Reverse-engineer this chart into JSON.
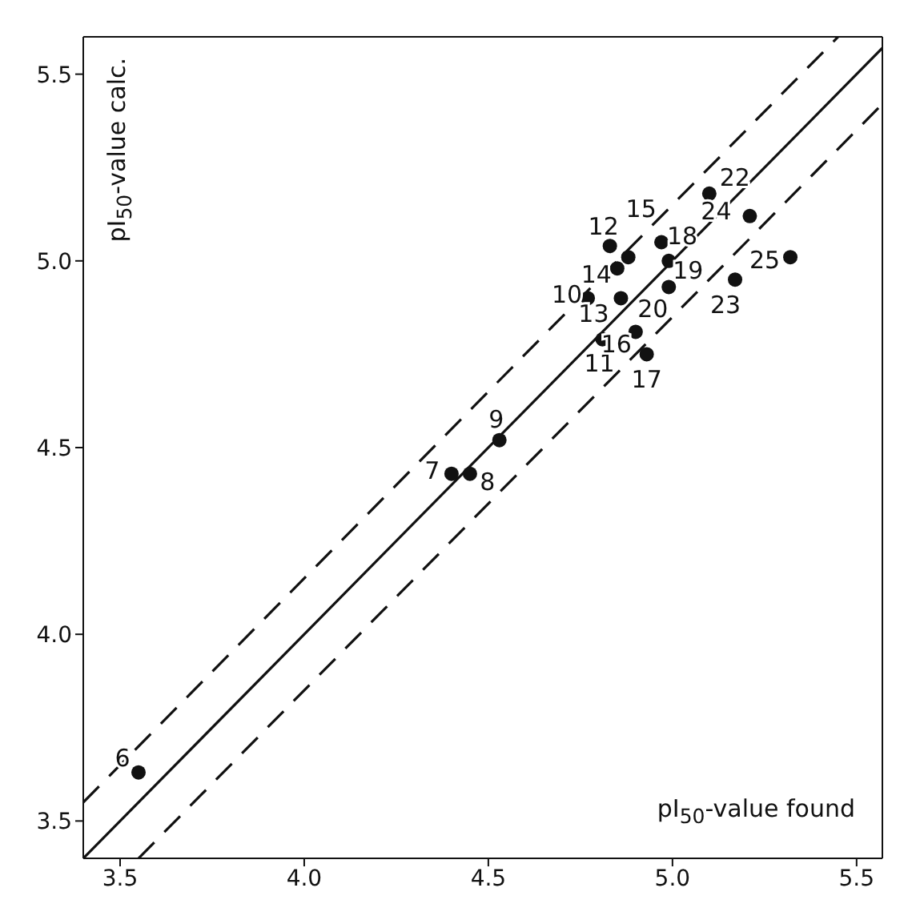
{
  "chart_data": {
    "type": "scatter",
    "xlabel": "pI$_{50}$-value found",
    "ylabel": "pI$_{50}$-value calc.",
    "xlim": [
      3.4,
      5.57
    ],
    "ylim": [
      3.4,
      5.6
    ],
    "xticks": [
      {
        "value": 3.5,
        "label": "3.5"
      },
      {
        "value": 4,
        "label": "4.0"
      },
      {
        "value": 4.5,
        "label": "4.5"
      },
      {
        "value": 5,
        "label": "5.0"
      },
      {
        "value": 5.5,
        "label": "5.5"
      }
    ],
    "yticks": [
      {
        "value": 3.5,
        "label": "3.5"
      },
      {
        "value": 4,
        "label": "4.0"
      },
      {
        "value": 4.5,
        "label": "4.5"
      },
      {
        "value": 5,
        "label": "5.0"
      },
      {
        "value": 5.5,
        "label": "5.5"
      }
    ],
    "grid": false,
    "legend": false,
    "marker": "circle",
    "series": [
      {
        "color": "#111111",
        "x": [
          3.55,
          4.4,
          4.45,
          4.53,
          4.77,
          4.81,
          4.83,
          4.86,
          4.85,
          4.88,
          4.9,
          4.93,
          4.97,
          4.99,
          4.99,
          5.1,
          5.17,
          5.21,
          5.32
        ],
        "values": [
          3.63,
          4.43,
          4.43,
          4.52,
          4.9,
          4.79,
          5.04,
          4.9,
          4.98,
          5.01,
          4.81,
          4.75,
          5.05,
          5.0,
          4.93,
          5.18,
          4.95,
          5.12,
          5.01
        ]
      },
      {
        "type": "line",
        "color": "#111111",
        "line_style": "solid",
        "marker": "none",
        "x": [
          3.4,
          5.57
        ],
        "values": [
          3.4,
          5.57
        ]
      },
      {
        "type": "line",
        "color": "#111111",
        "line_style": "dashed",
        "marker": "none",
        "x": [
          3.4,
          5.45
        ],
        "values": [
          3.55,
          5.6
        ]
      },
      {
        "type": "line",
        "color": "#111111",
        "line_style": "dashed",
        "marker": "none",
        "x": [
          3.55,
          5.57
        ],
        "values": [
          3.4,
          5.42
        ]
      }
    ],
    "annotations": [
      {
        "text": "6",
        "x": 3.55,
        "y": 3.63
      },
      {
        "text": "7",
        "x": 4.4,
        "y": 4.43
      },
      {
        "text": "8",
        "x": 4.45,
        "y": 4.43
      },
      {
        "text": "9",
        "x": 4.53,
        "y": 4.52
      },
      {
        "text": "10",
        "x": 4.77,
        "y": 4.9
      },
      {
        "text": "11",
        "x": 4.81,
        "y": 4.79
      },
      {
        "text": "12",
        "x": 4.83,
        "y": 5.04
      },
      {
        "text": "13",
        "x": 4.86,
        "y": 4.9
      },
      {
        "text": "14",
        "x": 4.85,
        "y": 4.98
      },
      {
        "text": "15",
        "x": 4.88,
        "y": 5.01
      },
      {
        "text": "16",
        "x": 4.9,
        "y": 4.81
      },
      {
        "text": "17",
        "x": 4.93,
        "y": 4.75
      },
      {
        "text": "18",
        "x": 4.97,
        "y": 5.05
      },
      {
        "text": "19",
        "x": 4.99,
        "y": 5.0
      },
      {
        "text": "20",
        "x": 4.99,
        "y": 4.93
      },
      {
        "text": "22",
        "x": 5.1,
        "y": 5.18
      },
      {
        "text": "23",
        "x": 5.17,
        "y": 4.95
      },
      {
        "text": "24",
        "x": 5.21,
        "y": 5.12
      },
      {
        "text": "25",
        "x": 5.32,
        "y": 5.01
      }
    ]
  }
}
